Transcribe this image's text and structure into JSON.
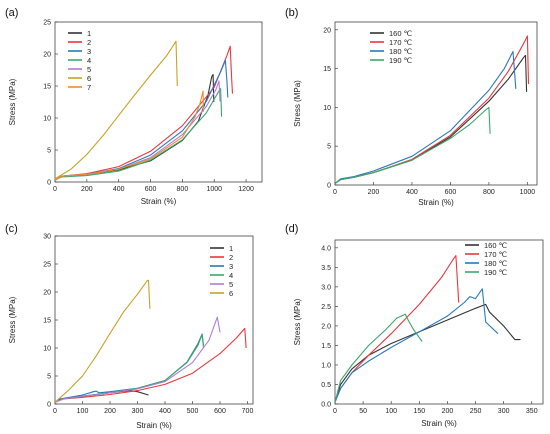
{
  "chart_data": [
    {
      "panel": "(a)",
      "type": "line",
      "xlabel": "Strain (%)",
      "ylabel": "Stress (MPa)",
      "xlim": [
        0,
        1300
      ],
      "ylim": [
        0,
        25
      ],
      "xticks": [
        0,
        200,
        400,
        600,
        800,
        1000,
        1200
      ],
      "yticks": [
        0,
        5,
        10,
        15,
        20,
        25
      ],
      "legend_position": "top-left",
      "series": [
        {
          "name": "1",
          "color": "#333333",
          "points": [
            [
              0,
              0.3
            ],
            [
              40,
              0.9
            ],
            [
              200,
              1.2
            ],
            [
              400,
              1.9
            ],
            [
              600,
              3.3
            ],
            [
              800,
              6.5
            ],
            [
              900,
              9.5
            ],
            [
              960,
              13.5
            ],
            [
              985,
              16.5
            ],
            [
              993,
              16.8
            ],
            [
              997,
              12.5
            ]
          ]
        },
        {
          "name": "2",
          "color": "#e8383d",
          "points": [
            [
              0,
              0.3
            ],
            [
              40,
              0.9
            ],
            [
              200,
              1.3
            ],
            [
              400,
              2.4
            ],
            [
              600,
              4.8
            ],
            [
              800,
              8.8
            ],
            [
              1000,
              14.8
            ],
            [
              1080,
              19.8
            ],
            [
              1100,
              21.2
            ],
            [
              1110,
              16.0
            ],
            [
              1115,
              13.8
            ]
          ]
        },
        {
          "name": "3",
          "color": "#2a7ab8",
          "points": [
            [
              0,
              0.3
            ],
            [
              40,
              0.9
            ],
            [
              200,
              1.2
            ],
            [
              400,
              2.1
            ],
            [
              600,
              4.2
            ],
            [
              800,
              8.0
            ],
            [
              950,
              12.6
            ],
            [
              1040,
              17.2
            ],
            [
              1070,
              19.0
            ],
            [
              1080,
              15.6
            ],
            [
              1085,
              13.2
            ]
          ]
        },
        {
          "name": "4",
          "color": "#3aa86a",
          "points": [
            [
              0,
              0.3
            ],
            [
              40,
              0.8
            ],
            [
              200,
              1.0
            ],
            [
              400,
              1.7
            ],
            [
              600,
              3.4
            ],
            [
              800,
              6.6
            ],
            [
              950,
              10.8
            ],
            [
              1020,
              13.8
            ],
            [
              1040,
              14.6
            ],
            [
              1046,
              10.2
            ]
          ]
        },
        {
          "name": "5",
          "color": "#b07cd8",
          "points": [
            [
              0,
              0.3
            ],
            [
              40,
              0.9
            ],
            [
              200,
              1.2
            ],
            [
              400,
              2.0
            ],
            [
              600,
              3.8
            ],
            [
              800,
              7.4
            ],
            [
              950,
              11.8
            ],
            [
              1010,
              14.4
            ],
            [
              1030,
              15.8
            ],
            [
              1036,
              12.6
            ]
          ]
        },
        {
          "name": "6",
          "color": "#c9a227",
          "points": [
            [
              0,
              0.5
            ],
            [
              100,
              2.0
            ],
            [
              200,
              4.3
            ],
            [
              300,
              7.2
            ],
            [
              400,
              10.4
            ],
            [
              500,
              13.6
            ],
            [
              600,
              16.7
            ],
            [
              700,
              19.7
            ],
            [
              750,
              21.6
            ],
            [
              760,
              22.0
            ],
            [
              768,
              15.0
            ]
          ]
        },
        {
          "name": "7",
          "color": "#f08c28",
          "points": [
            [
              0,
              0.3
            ],
            [
              40,
              0.9
            ],
            [
              200,
              1.2
            ],
            [
              400,
              2.0
            ],
            [
              600,
              3.6
            ],
            [
              800,
              7.0
            ],
            [
              880,
              10.2
            ],
            [
              910,
              12.2
            ],
            [
              930,
              14.2
            ],
            [
              932,
              11.0
            ]
          ]
        }
      ]
    },
    {
      "panel": "(b)",
      "type": "line",
      "xlabel": "Strain (%)",
      "ylabel": "Stress (MPa)",
      "xlim": [
        0,
        1050
      ],
      "ylim": [
        0,
        21
      ],
      "xticks": [
        0,
        200,
        400,
        600,
        800,
        1000
      ],
      "yticks": [
        0,
        5,
        10,
        15,
        20
      ],
      "legend_position": "top-left",
      "series": [
        {
          "name": "160 ℃",
          "color": "#333333",
          "points": [
            [
              0,
              0.2
            ],
            [
              30,
              0.7
            ],
            [
              100,
              1.0
            ],
            [
              200,
              1.6
            ],
            [
              400,
              3.2
            ],
            [
              600,
              6.2
            ],
            [
              800,
              10.8
            ],
            [
              900,
              13.6
            ],
            [
              980,
              16.4
            ],
            [
              990,
              16.7
            ],
            [
              996,
              12.0
            ]
          ]
        },
        {
          "name": "170 ℃",
          "color": "#e8383d",
          "points": [
            [
              0,
              0.2
            ],
            [
              30,
              0.7
            ],
            [
              100,
              1.0
            ],
            [
              200,
              1.6
            ],
            [
              400,
              3.3
            ],
            [
              600,
              6.4
            ],
            [
              800,
              11.2
            ],
            [
              900,
              14.6
            ],
            [
              980,
              18.2
            ],
            [
              1000,
              19.2
            ],
            [
              1006,
              13.0
            ]
          ]
        },
        {
          "name": "180 ℃",
          "color": "#2a7ab8",
          "points": [
            [
              0,
              0.2
            ],
            [
              30,
              0.8
            ],
            [
              100,
              1.1
            ],
            [
              200,
              1.8
            ],
            [
              400,
              3.7
            ],
            [
              600,
              7.0
            ],
            [
              800,
              12.2
            ],
            [
              880,
              15.0
            ],
            [
              925,
              17.2
            ],
            [
              935,
              14.0
            ],
            [
              940,
              12.4
            ]
          ]
        },
        {
          "name": "190 ℃",
          "color": "#3aa86a",
          "points": [
            [
              0,
              0.2
            ],
            [
              30,
              0.7
            ],
            [
              100,
              1.0
            ],
            [
              200,
              1.6
            ],
            [
              400,
              3.2
            ],
            [
              600,
              6.0
            ],
            [
              700,
              7.8
            ],
            [
              780,
              9.6
            ],
            [
              800,
              10.0
            ],
            [
              806,
              6.6
            ]
          ]
        }
      ]
    },
    {
      "panel": "(c)",
      "type": "line",
      "xlabel": "Strain (%)",
      "ylabel": "Stress (MPa)",
      "xlim": [
        0,
        720
      ],
      "ylim": [
        0,
        30
      ],
      "xticks": [
        0,
        100,
        200,
        300,
        400,
        500,
        600,
        700
      ],
      "yticks": [
        0,
        5,
        10,
        15,
        20,
        25,
        30
      ],
      "legend_position": "top-right",
      "series": [
        {
          "name": "1",
          "color": "#333333",
          "points": [
            [
              0,
              0.3
            ],
            [
              20,
              0.9
            ],
            [
              100,
              1.4
            ],
            [
              200,
              2.0
            ],
            [
              270,
              2.4
            ],
            [
              300,
              2.2
            ],
            [
              340,
              1.6
            ]
          ]
        },
        {
          "name": "2",
          "color": "#e8383d",
          "points": [
            [
              0,
              0.3
            ],
            [
              30,
              0.9
            ],
            [
              100,
              1.2
            ],
            [
              200,
              1.7
            ],
            [
              300,
              2.4
            ],
            [
              400,
              3.5
            ],
            [
              500,
              5.5
            ],
            [
              600,
              9.0
            ],
            [
              660,
              11.8
            ],
            [
              690,
              13.5
            ],
            [
              695,
              10.0
            ]
          ]
        },
        {
          "name": "3",
          "color": "#2a7ab8",
          "points": [
            [
              0,
              0.3
            ],
            [
              30,
              1.0
            ],
            [
              100,
              1.6
            ],
            [
              140,
              2.2
            ],
            [
              150,
              2.3
            ],
            [
              160,
              2.0
            ],
            [
              200,
              2.2
            ],
            [
              300,
              2.8
            ],
            [
              400,
              4.2
            ],
            [
              480,
              7.5
            ],
            [
              520,
              10.8
            ],
            [
              535,
              12.5
            ],
            [
              540,
              10.5
            ]
          ]
        },
        {
          "name": "4",
          "color": "#3aa86a",
          "points": [
            [
              0,
              0.3
            ],
            [
              30,
              0.9
            ],
            [
              100,
              1.4
            ],
            [
              200,
              2.0
            ],
            [
              300,
              2.8
            ],
            [
              400,
              4.2
            ],
            [
              480,
              7.4
            ],
            [
              520,
              10.5
            ],
            [
              535,
              12.4
            ],
            [
              540,
              10.0
            ]
          ]
        },
        {
          "name": "5",
          "color": "#b07cd8",
          "points": [
            [
              0,
              0.3
            ],
            [
              30,
              0.9
            ],
            [
              100,
              1.4
            ],
            [
              200,
              2.0
            ],
            [
              300,
              2.7
            ],
            [
              400,
              4.0
            ],
            [
              500,
              7.4
            ],
            [
              560,
              11.4
            ],
            [
              590,
              15.5
            ],
            [
              600,
              12.8
            ]
          ]
        },
        {
          "name": "6",
          "color": "#c9a227",
          "points": [
            [
              0,
              0.3
            ],
            [
              50,
              2.5
            ],
            [
              100,
              5.0
            ],
            [
              150,
              8.6
            ],
            [
              200,
              12.6
            ],
            [
              250,
              16.5
            ],
            [
              300,
              19.6
            ],
            [
              335,
              22.0
            ],
            [
              340,
              22.1
            ],
            [
              345,
              17.0
            ]
          ]
        }
      ]
    },
    {
      "panel": "(d)",
      "type": "line",
      "xlabel": "Strain (%)",
      "ylabel": "Stress (MPa)",
      "xlim": [
        0,
        370
      ],
      "ylim": [
        0,
        4.2
      ],
      "xticks": [
        0,
        50,
        100,
        150,
        200,
        250,
        300,
        350
      ],
      "yticks": [
        0.0,
        0.5,
        1.0,
        1.5,
        2.0,
        2.5,
        3.0,
        3.5,
        4.0
      ],
      "ytick_labels": [
        "0.0",
        "0.5",
        "1.0",
        "1.5",
        "2.0",
        "2.5",
        "3.0",
        "3.5",
        "4.0"
      ],
      "legend_position": "top-right",
      "series": [
        {
          "name": "160 ℃",
          "color": "#333333",
          "points": [
            [
              0,
              0.05
            ],
            [
              10,
              0.5
            ],
            [
              30,
              0.9
            ],
            [
              60,
              1.25
            ],
            [
              100,
              1.55
            ],
            [
              150,
              1.85
            ],
            [
              200,
              2.15
            ],
            [
              250,
              2.45
            ],
            [
              268,
              2.55
            ],
            [
              275,
              2.35
            ],
            [
              300,
              2.0
            ],
            [
              320,
              1.65
            ],
            [
              330,
              1.65
            ]
          ]
        },
        {
          "name": "170 ℃",
          "color": "#e8383d",
          "points": [
            [
              0,
              0.05
            ],
            [
              10,
              0.4
            ],
            [
              30,
              0.8
            ],
            [
              60,
              1.25
            ],
            [
              100,
              1.8
            ],
            [
              150,
              2.55
            ],
            [
              190,
              3.25
            ],
            [
              210,
              3.7
            ],
            [
              215,
              3.8
            ],
            [
              220,
              2.6
            ]
          ]
        },
        {
          "name": "180 ℃",
          "color": "#2a7ab8",
          "points": [
            [
              0,
              0.05
            ],
            [
              10,
              0.4
            ],
            [
              30,
              0.8
            ],
            [
              60,
              1.1
            ],
            [
              100,
              1.45
            ],
            [
              150,
              1.85
            ],
            [
              200,
              2.25
            ],
            [
              230,
              2.6
            ],
            [
              240,
              2.75
            ],
            [
              250,
              2.7
            ],
            [
              262,
              2.95
            ],
            [
              268,
              2.1
            ],
            [
              290,
              1.8
            ]
          ]
        },
        {
          "name": "190 ℃",
          "color": "#3aa86a",
          "points": [
            [
              0,
              0.05
            ],
            [
              10,
              0.6
            ],
            [
              30,
              1.0
            ],
            [
              60,
              1.5
            ],
            [
              90,
              1.9
            ],
            [
              110,
              2.2
            ],
            [
              125,
              2.3
            ],
            [
              130,
              2.15
            ],
            [
              140,
              1.9
            ],
            [
              155,
              1.6
            ]
          ]
        }
      ]
    }
  ]
}
